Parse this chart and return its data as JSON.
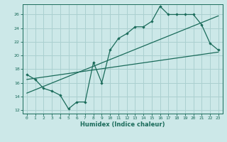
{
  "title": "",
  "xlabel": "Humidex (Indice chaleur)",
  "bg_color": "#cce8e8",
  "grid_color": "#aad0d0",
  "line_color": "#1a6b5a",
  "xlim": [
    -0.5,
    23.5
  ],
  "ylim": [
    11.5,
    27.5
  ],
  "xticks": [
    0,
    1,
    2,
    3,
    4,
    5,
    6,
    7,
    8,
    9,
    10,
    11,
    12,
    13,
    14,
    15,
    16,
    17,
    18,
    19,
    20,
    21,
    22,
    23
  ],
  "yticks": [
    12,
    14,
    16,
    18,
    20,
    22,
    24,
    26
  ],
  "data_line": [
    [
      0,
      17.2
    ],
    [
      1,
      16.5
    ],
    [
      2,
      15.2
    ],
    [
      3,
      14.8
    ],
    [
      4,
      14.2
    ],
    [
      5,
      12.2
    ],
    [
      6,
      13.2
    ],
    [
      7,
      13.2
    ],
    [
      8,
      19.0
    ],
    [
      9,
      16.0
    ],
    [
      10,
      20.8
    ],
    [
      11,
      22.5
    ],
    [
      12,
      23.2
    ],
    [
      13,
      24.2
    ],
    [
      14,
      24.2
    ],
    [
      15,
      25.0
    ],
    [
      16,
      27.2
    ],
    [
      17,
      26.0
    ],
    [
      18,
      26.0
    ],
    [
      19,
      26.0
    ],
    [
      20,
      26.0
    ],
    [
      21,
      24.5
    ],
    [
      22,
      21.8
    ],
    [
      23,
      20.8
    ]
  ],
  "trend1_x": [
    0,
    23
  ],
  "trend1_y": [
    16.5,
    20.5
  ],
  "trend2_x": [
    0,
    23
  ],
  "trend2_y": [
    14.5,
    25.8
  ]
}
